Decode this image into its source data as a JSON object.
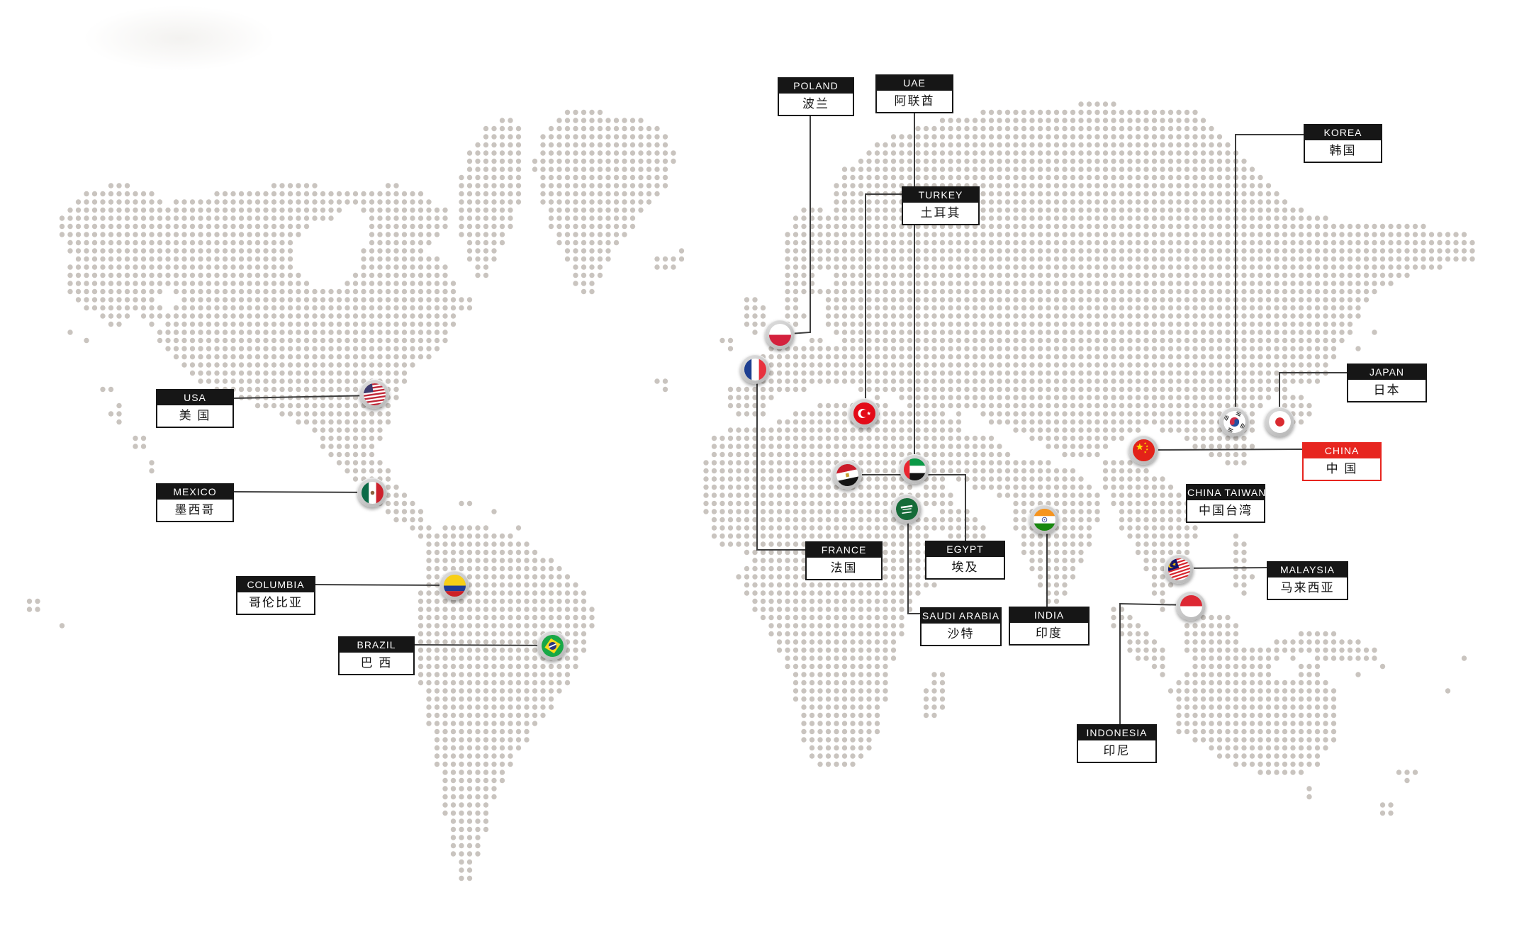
{
  "map": {
    "description_dot_map": "dotted-world-map",
    "colors": {
      "dot": "#c9c4bf",
      "label_black": "#161616",
      "accent_red": "#e7251f",
      "connector_line": "#3c3c3c",
      "marker_ring": "#c4c4c4",
      "background": "#ffffff"
    }
  },
  "countries": [
    {
      "id": "poland",
      "en": "POLAND",
      "cn": "波兰",
      "flag": "flag-poland",
      "highlight": false
    },
    {
      "id": "uae",
      "en": "UAE",
      "cn": "阿联酋",
      "flag": "flag-uae",
      "highlight": false
    },
    {
      "id": "korea",
      "en": "KOREA",
      "cn": "韩国",
      "flag": "flag-korea",
      "highlight": false
    },
    {
      "id": "turkey",
      "en": "TURKEY",
      "cn": "土耳其",
      "flag": "flag-turkey",
      "highlight": false
    },
    {
      "id": "japan",
      "en": "JAPAN",
      "cn": "日本",
      "flag": "flag-japan",
      "highlight": false
    },
    {
      "id": "usa",
      "en": "USA",
      "cn": "美 国",
      "flag": "flag-usa",
      "highlight": false
    },
    {
      "id": "china",
      "en": "CHINA",
      "cn": "中 国",
      "flag": "flag-china",
      "highlight": true
    },
    {
      "id": "mexico",
      "en": "MEXICO",
      "cn": "墨西哥",
      "flag": "flag-mexico",
      "highlight": false
    },
    {
      "id": "taiwan",
      "en": "CHINA TAIWAN",
      "cn": "中国台湾",
      "flag": "",
      "highlight": false
    },
    {
      "id": "france",
      "en": "FRANCE",
      "cn": "法国",
      "flag": "flag-france",
      "highlight": false
    },
    {
      "id": "egypt",
      "en": "EGYPT",
      "cn": "埃及",
      "flag": "flag-egypt",
      "highlight": false
    },
    {
      "id": "saudi",
      "en": "SAUDI ARABIA",
      "cn": "沙特",
      "flag": "flag-saudi-arabia",
      "highlight": false
    },
    {
      "id": "india",
      "en": "INDIA",
      "cn": "印度",
      "flag": "flag-india",
      "highlight": false
    },
    {
      "id": "malaysia",
      "en": "MALAYSIA",
      "cn": "马来西亚",
      "flag": "flag-malaysia",
      "highlight": false
    },
    {
      "id": "columbia",
      "en": "COLUMBIA",
      "cn": "哥伦比亚",
      "flag": "flag-colombia",
      "highlight": false
    },
    {
      "id": "brazil",
      "en": "BRAZIL",
      "cn": "巴 西",
      "flag": "flag-brazil",
      "highlight": false
    },
    {
      "id": "indonesia",
      "en": "INDONESIA",
      "cn": "印尼",
      "flag": "flag-indonesia",
      "highlight": false
    }
  ]
}
